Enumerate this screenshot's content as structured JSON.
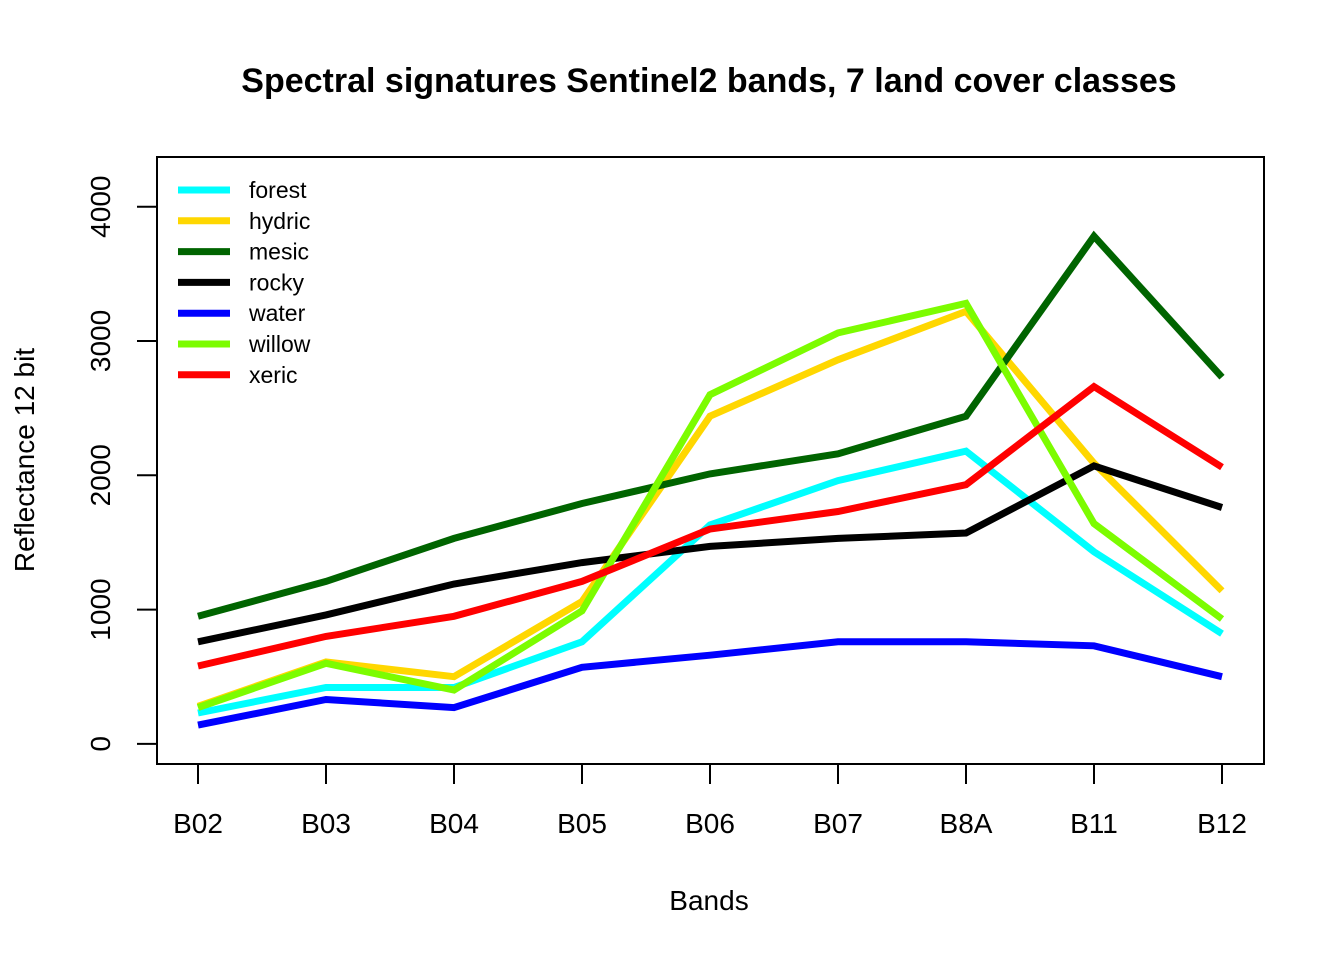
{
  "chart_data": {
    "type": "line",
    "title": "Spectral signatures Sentinel2 bands, 7 land cover classes",
    "xlabel": "Bands",
    "ylabel": "Reflectance 12 bit",
    "categories": [
      "B02",
      "B03",
      "B04",
      "B05",
      "B06",
      "B07",
      "B8A",
      "B11",
      "B12"
    ],
    "ylim": [
      -150,
      4370
    ],
    "yticks": [
      0,
      1000,
      2000,
      3000,
      4000
    ],
    "grid": false,
    "legend_position": "top-left",
    "series": [
      {
        "name": "forest",
        "color": "#00FFFF",
        "values": [
          230,
          420,
          420,
          760,
          1630,
          1960,
          2180,
          1430,
          820
        ]
      },
      {
        "name": "hydric",
        "color": "#FFD700",
        "values": [
          280,
          610,
          500,
          1060,
          2440,
          2860,
          3220,
          2090,
          1140
        ]
      },
      {
        "name": "mesic",
        "color": "#006400",
        "values": [
          950,
          1210,
          1530,
          1790,
          2010,
          2160,
          2440,
          3780,
          2730
        ]
      },
      {
        "name": "rocky",
        "color": "#000000",
        "values": [
          760,
          960,
          1190,
          1350,
          1470,
          1530,
          1570,
          2070,
          1760
        ]
      },
      {
        "name": "water",
        "color": "#0000FF",
        "values": [
          140,
          330,
          270,
          570,
          660,
          760,
          760,
          730,
          500
        ]
      },
      {
        "name": "willow",
        "color": "#7CFC00",
        "values": [
          270,
          600,
          400,
          990,
          2600,
          3060,
          3280,
          1640,
          930
        ]
      },
      {
        "name": "xeric",
        "color": "#FF0000",
        "values": [
          580,
          800,
          950,
          1210,
          1600,
          1730,
          1930,
          2660,
          2060
        ]
      }
    ]
  }
}
